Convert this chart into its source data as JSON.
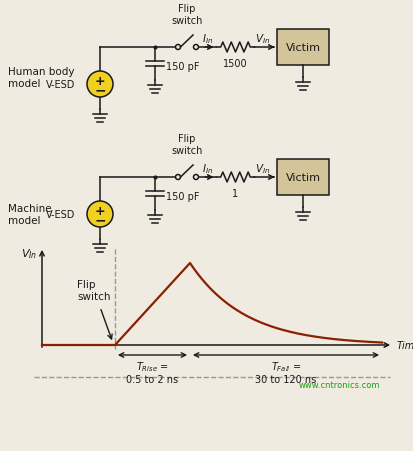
{
  "bg_color": "#f0ebe0",
  "line_color": "#1a1a1a",
  "curve_color": "#8b2000",
  "dashed_color": "#999999",
  "victim_fill": "#d4c49a",
  "vsource_fill": "#f0d020",
  "text_color": "#1a1a1a",
  "green_text": "#009900",
  "watermark": "www.cntronics.com",
  "hbm_label": "Human body\nmodel",
  "mm_label": "Machine\nmodel",
  "vin_label": "V_in",
  "iln_label": "I_In",
  "res1_label": "1500",
  "res2_label": "1",
  "cap_label": "150 pF",
  "sw_label": "Flip\nswitch",
  "victim_label": "Victim",
  "vesd_label": "V-ESD",
  "trise_label": "T_Rise =\n0.5 to 2 ns",
  "tfall_label": "T_Fall =\n30 to 120 ns",
  "flip_annot": "Flip\nswitch",
  "time_label": "Time"
}
